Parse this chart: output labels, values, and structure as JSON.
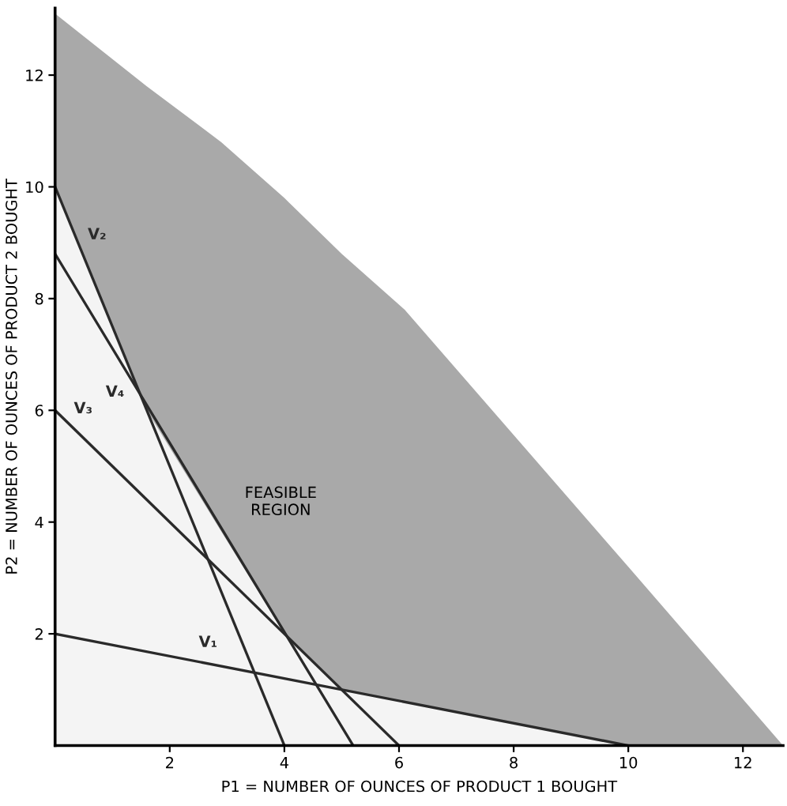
{
  "chart_data": {
    "type": "line",
    "xlabel": "P1 = NUMBER OF OUNCES OF PRODUCT 1 BOUGHT",
    "ylabel": "P2 = NUMBER OF OUNCES OF PRODUCT 2 BOUGHT",
    "xlim": [
      0,
      12.7
    ],
    "ylim": [
      0,
      13.2
    ],
    "xticks": [
      2,
      4,
      6,
      8,
      10,
      12
    ],
    "yticks": [
      2,
      4,
      6,
      8,
      10,
      12
    ],
    "grid": false,
    "stacked": true,
    "legend": false,
    "marker": "none",
    "line_style": "solid",
    "series": [
      {
        "type": "area",
        "color": "#f4f4f4",
        "x": [
          0,
          1.6,
          2.9,
          4,
          5,
          6.1,
          10,
          12.7
        ],
        "values": [
          10,
          6,
          3.83,
          2,
          1,
          0.78,
          0,
          0
        ]
      },
      {
        "type": "area",
        "color": "#a9a9a9",
        "x": [
          0,
          1.6,
          2.9,
          4,
          5,
          6.1,
          10,
          12.7
        ],
        "values": [
          3.1,
          5.8,
          6.97,
          7.8,
          7.8,
          7.02,
          3.2,
          0
        ]
      },
      {
        "name": "V₂",
        "color": "#2a2a2a",
        "x": [
          0,
          4
        ],
        "values": [
          10,
          0
        ]
      },
      {
        "name": "V₄",
        "color": "#2a2a2a",
        "x": [
          0,
          5.2
        ],
        "values": [
          8.8,
          0
        ]
      },
      {
        "name": "V₃",
        "color": "#2a2a2a",
        "x": [
          0,
          6
        ],
        "values": [
          6,
          0
        ]
      },
      {
        "name": "V₁",
        "color": "#2a2a2a",
        "x": [
          0,
          10
        ],
        "values": [
          2,
          0
        ]
      }
    ],
    "annotations": [
      "FEASIBLE\nREGION"
    ]
  }
}
